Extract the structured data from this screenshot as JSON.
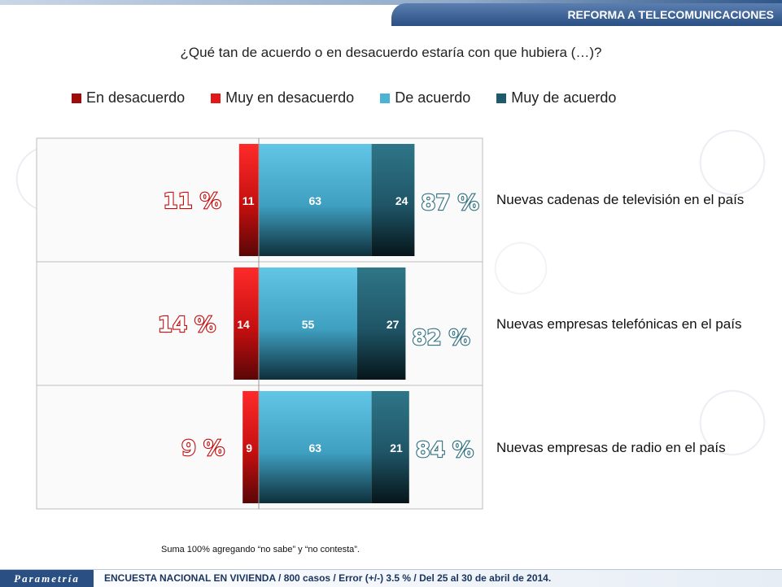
{
  "header": {
    "title": "REFORMA A TELECOMUNICACIONES"
  },
  "question": "¿Qué tan de acuerdo o en desacuerdo estaría con que hubiera (…)?",
  "legend": [
    {
      "label": "En desacuerdo",
      "color": "#9e0b0b"
    },
    {
      "label": "Muy en desacuerdo",
      "color": "#e01818"
    },
    {
      "label": "De acuerdo",
      "color": "#4bb3d3"
    },
    {
      "label": "Muy de acuerdo",
      "color": "#1f5a6b"
    }
  ],
  "chart_data": {
    "type": "bar",
    "orientation": "horizontal-diverging",
    "categories": [
      "Nuevas cadenas de televisión en el país",
      "Nuevas empresas telefónicas en el país",
      "Nuevas empresas de radio en el país"
    ],
    "series": [
      {
        "name": "En desacuerdo",
        "values": [
          11,
          14,
          9
        ],
        "color": "#c40f0f"
      },
      {
        "name": "De acuerdo",
        "values": [
          63,
          55,
          63
        ],
        "color": "#4bb3d3"
      },
      {
        "name": "Muy de acuerdo",
        "values": [
          24,
          27,
          21
        ],
        "color": "#1f5a6b"
      }
    ],
    "totals_disagree": [
      "11 %",
      "14 %",
      "9 %"
    ],
    "totals_agree": [
      "87 %",
      "82 %",
      "84 %"
    ]
  },
  "footnote": "Suma 100% agregando “no sabe” y “no contesta”.",
  "footer": {
    "logo": "Parametría",
    "text": "ENCUESTA NACIONAL EN VIVIENDA / 800 casos / Error (+/-) 3.5 % / Del 25 al 30 de abril de 2014."
  }
}
